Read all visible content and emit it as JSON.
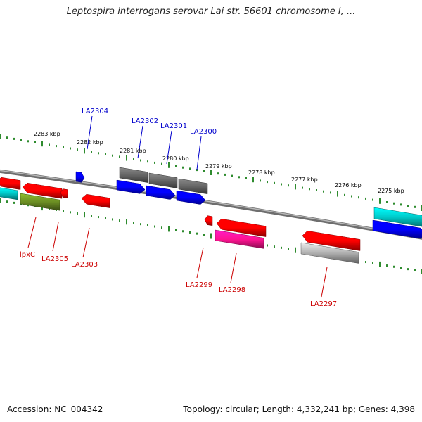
{
  "title": "Leptospira interrogans serovar Lai str. 56601 chromosome I, ...",
  "footer": {
    "accession": "Accession: NC_004342",
    "topology": "Topology: circular; Length: 4,332,241 bp; Genes: 4,398"
  },
  "colors": {
    "backbone": "#8a8a8a",
    "tick": "#2e8b2e",
    "label_forward": "#0000cc",
    "label_reverse": "#cc0000"
  },
  "scale_labels": [
    "2283 kbp",
    "2282 kbp",
    "2281 kbp",
    "2280 kbp",
    "2279 kbp",
    "2278 kbp",
    "2277 kbp",
    "2276 kbp",
    "2275 kbp"
  ],
  "gene_labels": {
    "forward": [
      "LA2304",
      "LA2302",
      "LA2301",
      "LA2300"
    ],
    "reverse": [
      "lpxC",
      "LA2305",
      "LA2303",
      "LA2299",
      "LA2298",
      "LA2297"
    ]
  },
  "features": [
    {
      "color": "#ff0000",
      "strand": "reverse"
    },
    {
      "color": "#ff0000",
      "strand": "reverse"
    },
    {
      "color": "#ff0000",
      "strand": "reverse"
    },
    {
      "color": "#ff0000",
      "strand": "reverse"
    },
    {
      "color": "#0000ff",
      "strand": "forward"
    },
    {
      "color": "#0000ff",
      "strand": "forward"
    },
    {
      "color": "#0000ff",
      "strand": "forward"
    },
    {
      "color": "#0000ff",
      "strand": "forward"
    },
    {
      "color": "#0000ff",
      "strand": "forward"
    },
    {
      "color": "#666666",
      "strand": "forward"
    },
    {
      "color": "#666666",
      "strand": "forward"
    },
    {
      "color": "#666666",
      "strand": "forward"
    },
    {
      "color": "#00c8c8",
      "strand": "forward"
    },
    {
      "color": "#00c8c8",
      "strand": "forward"
    },
    {
      "color": "#6b8e23",
      "strand": "reverse"
    },
    {
      "color": "#ff0000",
      "strand": "reverse"
    },
    {
      "color": "#ff0000",
      "strand": "reverse"
    },
    {
      "color": "#ff0000",
      "strand": "reverse"
    },
    {
      "color": "#ff1493",
      "strand": "reverse"
    },
    {
      "color": "#b0b0b0",
      "strand": "reverse"
    }
  ]
}
